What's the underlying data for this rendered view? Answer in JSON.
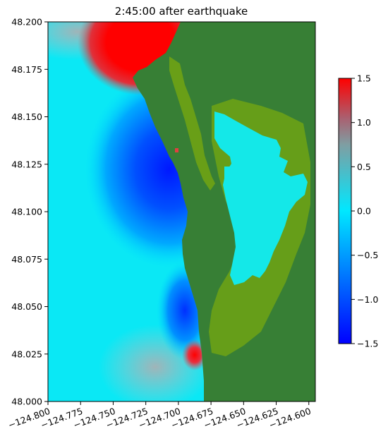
{
  "chart_data": {
    "type": "heatmap",
    "title": "2:45:00 after earthquake",
    "xlabel": "",
    "ylabel": "",
    "xlim": [
      -124.8,
      -124.595
    ],
    "ylim": [
      48.0,
      48.2
    ],
    "x_ticks": [
      -124.8,
      -124.775,
      -124.75,
      -124.725,
      -124.7,
      -124.675,
      -124.65,
      -124.625,
      -124.6
    ],
    "x_tick_labels": [
      "−124.800",
      "−124.775",
      "−124.750",
      "−124.725",
      "−124.700",
      "−124.675",
      "−124.650",
      "−124.625",
      "−124.600"
    ],
    "y_ticks": [
      48.0,
      48.025,
      48.05,
      48.075,
      48.1,
      48.125,
      48.15,
      48.175,
      48.2
    ],
    "y_tick_labels": [
      "48.000",
      "48.025",
      "48.050",
      "48.075",
      "48.100",
      "48.125",
      "48.150",
      "48.175",
      "48.200"
    ],
    "colorbar": {
      "vmin": -1.5,
      "vmax": 1.5,
      "ticks": [
        -1.5,
        -1.0,
        -0.5,
        0.0,
        0.5,
        1.0,
        1.5
      ],
      "tick_labels": [
        "−1.5",
        "−1.0",
        "−0.5",
        "0.0",
        "0.5",
        "1.0",
        "1.5"
      ],
      "colors": [
        "#0000ff",
        "#00e8ff",
        "#7f7f7f",
        "#ff0000"
      ]
    },
    "land_color": "#377f35",
    "shore_color": "#6fa314",
    "grid": false,
    "legend": "none"
  }
}
